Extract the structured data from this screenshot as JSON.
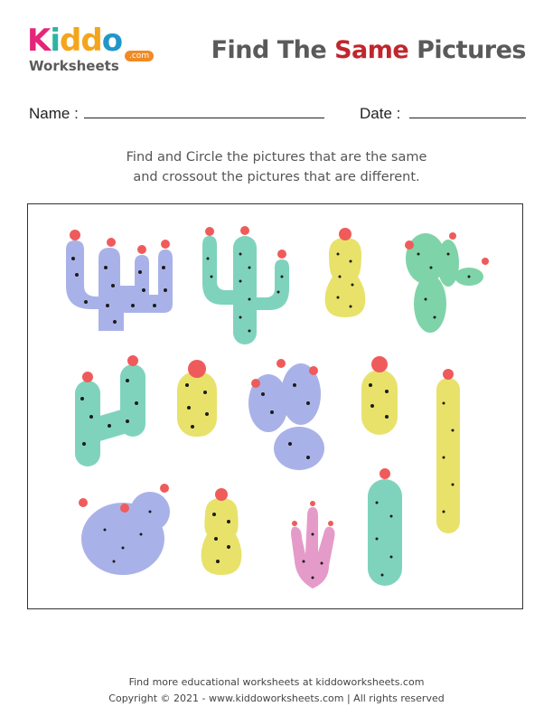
{
  "logo": {
    "letters": [
      "K",
      "i",
      "d",
      "d",
      "o"
    ],
    "letter_colors": [
      "#e6257a",
      "#2bb5a4",
      "#f4a51c",
      "#f4a51c",
      "#2196c9"
    ],
    "worksheets": "Worksheets",
    "com": ".com"
  },
  "title": {
    "prefix": "Find The ",
    "highlight": "Same",
    "suffix": " Pictures"
  },
  "fields": {
    "name_label": "Name :",
    "date_label": "Date :"
  },
  "instructions": {
    "line1": "Find and Circle the pictures that are the same",
    "line2": "and crossout the pictures that are different."
  },
  "cacti": [
    {
      "id": "cactus-1",
      "type": "branched-cactus",
      "color": "#a9b2e8"
    },
    {
      "id": "cactus-2",
      "type": "tall-two-arm-cactus",
      "color": "#7fd3bd"
    },
    {
      "id": "cactus-3",
      "type": "barrel-cactus",
      "color": "#e8e26a"
    },
    {
      "id": "cactus-4",
      "type": "prickly-pear-cactus",
      "color": "#7fd3a8"
    },
    {
      "id": "cactus-5",
      "type": "arm-cactus",
      "color": "#7fd3bd"
    },
    {
      "id": "cactus-6",
      "type": "round-cactus",
      "color": "#e8e26a"
    },
    {
      "id": "cactus-7",
      "type": "paddle-cactus",
      "color": "#a9b2e8"
    },
    {
      "id": "cactus-8",
      "type": "round-cactus",
      "color": "#e8e26a"
    },
    {
      "id": "cactus-9",
      "type": "column-cactus",
      "color": "#e8e26a"
    },
    {
      "id": "cactus-10",
      "type": "bushy-cactus",
      "color": "#a9b2e8"
    },
    {
      "id": "cactus-11",
      "type": "barrel-cactus",
      "color": "#e8e26a"
    },
    {
      "id": "cactus-12",
      "type": "coral-cactus",
      "color": "#e59bc9"
    },
    {
      "id": "cactus-13",
      "type": "column-cactus",
      "color": "#7fd3bd"
    }
  ],
  "footer": {
    "line1": "Find more educational worksheets at kiddoworksheets.com",
    "line2": "Copyright © 2021 - www.kiddoworksheets.com  |  All rights reserved"
  }
}
